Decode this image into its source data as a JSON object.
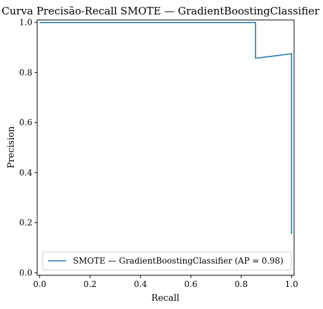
{
  "chart_data": {
    "type": "line",
    "title": "Curva Precisão-Recall SMOTE — GradientBoostingClassifier",
    "xlabel": "Recall",
    "ylabel": "Precision",
    "xlim": [
      -0.01,
      1.01
    ],
    "ylim": [
      -0.01,
      1.01
    ],
    "xticks": [
      0.0,
      0.2,
      0.4,
      0.6,
      0.8,
      1.0
    ],
    "yticks": [
      0.0,
      0.2,
      0.4,
      0.6,
      0.8,
      1.0
    ],
    "xtick_labels": [
      "0.0",
      "0.2",
      "0.4",
      "0.6",
      "0.8",
      "1.0"
    ],
    "ytick_labels": [
      "0.0",
      "0.2",
      "0.4",
      "0.6",
      "0.8",
      "1.0"
    ],
    "grid": false,
    "legend_position": "lower-right",
    "series": [
      {
        "name": "SMOTE — GradientBoostingClassifier (AP = 0.98)",
        "color": "#1f77b4",
        "step": "post",
        "x": [
          0.0,
          0.857,
          0.857,
          1.0,
          1.0
        ],
        "y": [
          1.0,
          1.0,
          0.857,
          0.875,
          0.155
        ]
      }
    ]
  }
}
